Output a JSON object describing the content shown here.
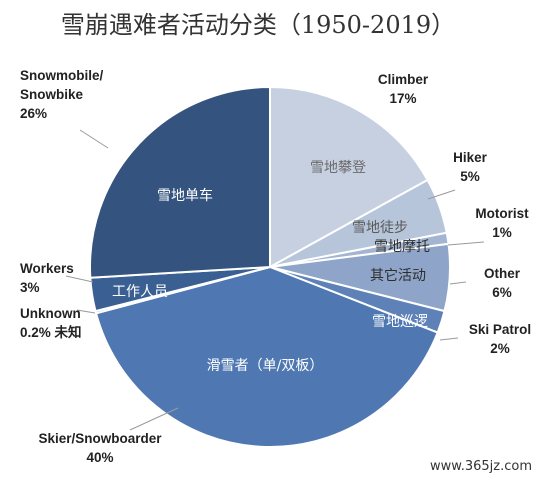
{
  "chart_data": {
    "type": "pie",
    "title": "雪崩遇难者活动分类（1950-2019）",
    "slices": [
      {
        "name": "Climber",
        "name_cn": "雪地攀登",
        "value": 17,
        "pct_label": "17%",
        "color": "#c7d0e0",
        "inner_color": "#6b6b6b"
      },
      {
        "name": "Hiker",
        "name_cn": "雪地徒步",
        "value": 5,
        "pct_label": "5%",
        "color": "#b7c5db",
        "inner_color": "#5a5a5a"
      },
      {
        "name": "Motorist",
        "name_cn": "雪地摩托",
        "value": 1,
        "pct_label": "1%",
        "color": "#a3b5d1",
        "inner_color": "#2e2e2e"
      },
      {
        "name": "Other",
        "name_cn": "其它活动",
        "value": 6,
        "pct_label": "6%",
        "color": "#8ea4c8",
        "inner_color": "#2e2e2e"
      },
      {
        "name": "Ski Patrol",
        "name_cn": "雪地巡逻",
        "value": 2,
        "pct_label": "2%",
        "color": "#5e82b8",
        "inner_color": "#ffffff"
      },
      {
        "name": "Skier/Snowboarder",
        "name_cn": "滑雪者（单/双板）",
        "value": 40,
        "pct_label": "40%",
        "color": "#4f78b2",
        "inner_color": "#ffffff"
      },
      {
        "name": "Unknown",
        "name_cn": "未知",
        "value": 0.2,
        "pct_label": "0.2%",
        "color": "#5379b0",
        "inner_color": "#222222"
      },
      {
        "name": "Workers",
        "name_cn": "工作人员",
        "value": 3,
        "pct_label": "3%",
        "color": "#3a5f93",
        "inner_color": "#ffffff"
      },
      {
        "name": "Snowmobile/ Snowbike",
        "name_cn": "雪地单车",
        "value": 26,
        "pct_label": "26%",
        "color": "#34537f",
        "inner_color": "#ffffff"
      }
    ],
    "legend": "none"
  },
  "watermark": "www.365jz.com"
}
